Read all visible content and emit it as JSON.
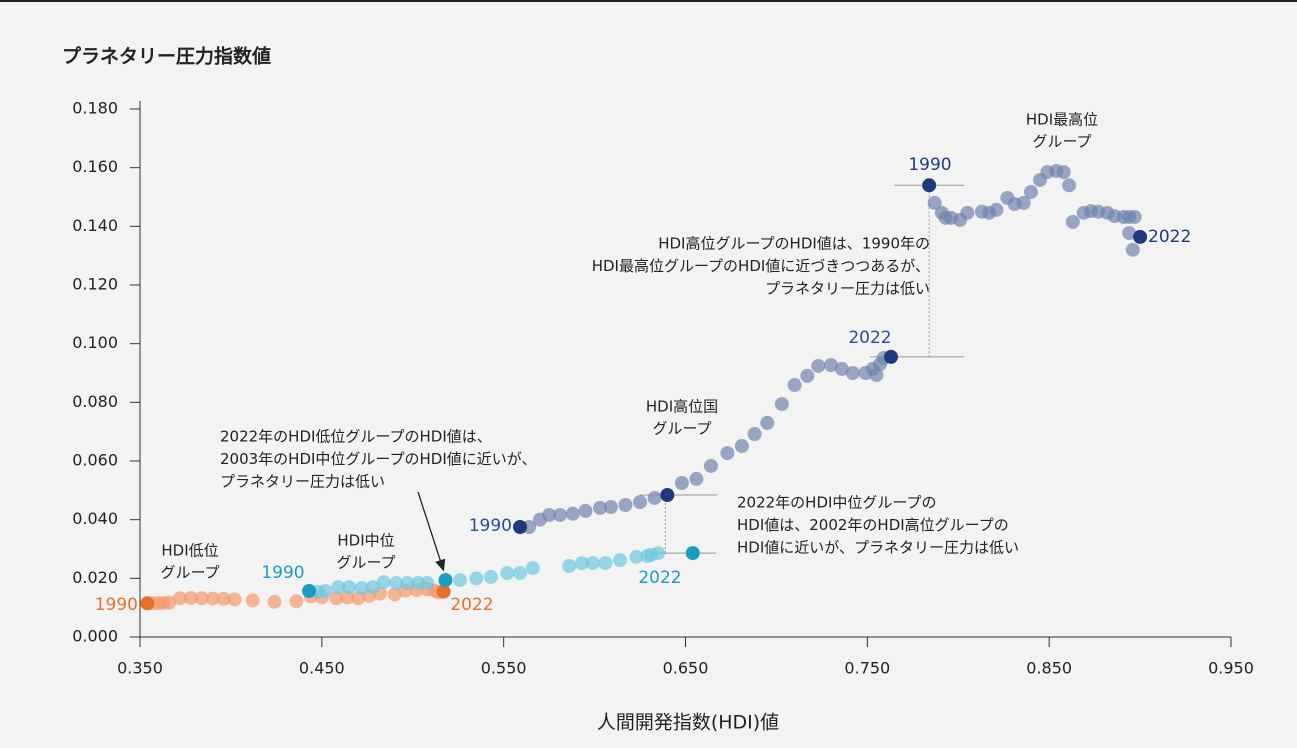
{
  "chart_data": {
    "type": "scatter",
    "title": "プラネタリー圧力指数値",
    "x_label": "人間開発指数(HDI)値",
    "xlim": [
      0.35,
      0.95
    ],
    "ylim": [
      0,
      0.18
    ],
    "xticks": [
      {
        "value": 0.35,
        "label": "0.350"
      },
      {
        "value": 0.45,
        "label": "0.450"
      },
      {
        "value": 0.55,
        "label": "0.550"
      },
      {
        "value": 0.65,
        "label": "0.650"
      },
      {
        "value": 0.75,
        "label": "0.750"
      },
      {
        "value": 0.85,
        "label": "0.850"
      },
      {
        "value": 0.95,
        "label": "0.950"
      }
    ],
    "yticks": [
      {
        "value": 0,
        "label": "0.000"
      },
      {
        "value": 0.02,
        "label": "0.020"
      },
      {
        "value": 0.04,
        "label": "0.040"
      },
      {
        "value": 0.06,
        "label": "0.060"
      },
      {
        "value": 0.08,
        "label": "0.080"
      },
      {
        "value": 0.1,
        "label": "0.100"
      },
      {
        "value": 0.12,
        "label": "0.120"
      },
      {
        "value": 0.14,
        "label": "0.140"
      },
      {
        "value": 0.16,
        "label": "0.160"
      },
      {
        "value": 0.18,
        "label": "0.180"
      }
    ],
    "series": [
      {
        "name": [
          "HDI低位",
          "グループ"
        ],
        "color": "#f29a6e",
        "highlight_color": "#e8702a",
        "label_start": "1990",
        "label_end": "2022",
        "highlight": [
          0,
          28
        ],
        "x": [
          0.354,
          0.357,
          0.36,
          0.363,
          0.366,
          0.372,
          0.378,
          0.384,
          0.39,
          0.396,
          0.402,
          0.412,
          0.424,
          0.436,
          0.444,
          0.45,
          0.458,
          0.464,
          0.47,
          0.476,
          0.482,
          0.49,
          0.496,
          0.502,
          0.508,
          0.512,
          0.514,
          0.516,
          0.517
        ],
        "values": [
          0.0115,
          0.0115,
          0.0115,
          0.0116,
          0.0117,
          0.0132,
          0.0133,
          0.0132,
          0.0131,
          0.013,
          0.0128,
          0.0125,
          0.012,
          0.0122,
          0.0138,
          0.0135,
          0.0132,
          0.0135,
          0.0132,
          0.014,
          0.0148,
          0.0145,
          0.0158,
          0.016,
          0.0162,
          0.0158,
          0.0152,
          0.0155,
          0.0155
        ]
      },
      {
        "name": [
          "HDI中位",
          "グループ"
        ],
        "color": "#6cc7e0",
        "highlight_color": "#1a9bc2",
        "label_start": "1990",
        "label_end": "2022",
        "highlight": [
          0,
          12,
          28
        ],
        "x": [
          0.443,
          0.448,
          0.452,
          0.459,
          0.465,
          0.472,
          0.478,
          0.484,
          0.491,
          0.497,
          0.503,
          0.508,
          0.518,
          0.526,
          0.535,
          0.543,
          0.552,
          0.559,
          0.566,
          0.586,
          0.593,
          0.599,
          0.606,
          0.614,
          0.623,
          0.629,
          0.631,
          0.635,
          0.654
        ],
        "values": [
          0.0157,
          0.0154,
          0.0157,
          0.017,
          0.017,
          0.0167,
          0.017,
          0.0187,
          0.0184,
          0.0184,
          0.0184,
          0.0184,
          0.0194,
          0.0194,
          0.02,
          0.0205,
          0.0218,
          0.0218,
          0.0235,
          0.0242,
          0.0252,
          0.0252,
          0.0252,
          0.0262,
          0.0273,
          0.0276,
          0.028,
          0.0286,
          0.0286
        ]
      },
      {
        "name": [
          "HDI高位国",
          "グループ"
        ],
        "color": "#7183ad",
        "highlight_color": "#1f3a7a",
        "label_start": "1990",
        "label_end": "2022",
        "highlight": [
          0,
          12,
          32
        ],
        "x": [
          0.559,
          0.564,
          0.57,
          0.575,
          0.581,
          0.588,
          0.595,
          0.603,
          0.609,
          0.617,
          0.625,
          0.633,
          0.64,
          0.648,
          0.656,
          0.664,
          0.673,
          0.681,
          0.688,
          0.695,
          0.703,
          0.71,
          0.717,
          0.723,
          0.73,
          0.736,
          0.742,
          0.749,
          0.753,
          0.755,
          0.757,
          0.759,
          0.763
        ],
        "values": [
          0.0375,
          0.0375,
          0.04,
          0.0416,
          0.0416,
          0.042,
          0.043,
          0.044,
          0.0443,
          0.045,
          0.046,
          0.0474,
          0.0484,
          0.0525,
          0.0539,
          0.0583,
          0.0627,
          0.0651,
          0.0692,
          0.073,
          0.0794,
          0.0859,
          0.089,
          0.0924,
          0.0927,
          0.0914,
          0.09,
          0.09,
          0.0914,
          0.0893,
          0.093,
          0.0951,
          0.0955
        ]
      },
      {
        "name": [
          "HDI最高位",
          "グループ"
        ],
        "color": "#7183ad",
        "highlight_color": "#1f3a7a",
        "label_start": "1990",
        "label_end": "2022",
        "highlight": [
          0,
          30
        ],
        "x": [
          0.784,
          0.787,
          0.791,
          0.793,
          0.796,
          0.801,
          0.805,
          0.813,
          0.817,
          0.821,
          0.827,
          0.831,
          0.836,
          0.84,
          0.845,
          0.849,
          0.854,
          0.858,
          0.861,
          0.863,
          0.869,
          0.873,
          0.877,
          0.882,
          0.886,
          0.891,
          0.894,
          0.896,
          0.897,
          0.894,
          0.9
        ],
        "values": [
          0.154,
          0.148,
          0.1446,
          0.1429,
          0.1429,
          0.1422,
          0.1446,
          0.145,
          0.1446,
          0.1456,
          0.1497,
          0.1476,
          0.148,
          0.1517,
          0.1558,
          0.1585,
          0.1589,
          0.1585,
          0.154,
          0.1415,
          0.1446,
          0.1452,
          0.145,
          0.1446,
          0.1435,
          0.1432,
          0.1432,
          0.132,
          0.1432,
          0.1377,
          0.1364
        ]
      }
    ],
    "annotations": [
      [
        "2022年のHDI低位グループのHDI値は、",
        "2003年のHDI中位グループのHDI値に近いが、",
        "プラネタリー圧力は低い"
      ],
      [
        "HDI高位グループのHDI値は、1990年の",
        "HDI最高位グループのHDI値に近づきつつあるが、",
        "プラネタリー圧力は低い"
      ],
      [
        "2022年のHDI中位グループの",
        "HDI値は、2002年のHDI高位グループの",
        "HDI値に近いが、プラネタリー圧力は低い"
      ]
    ]
  }
}
